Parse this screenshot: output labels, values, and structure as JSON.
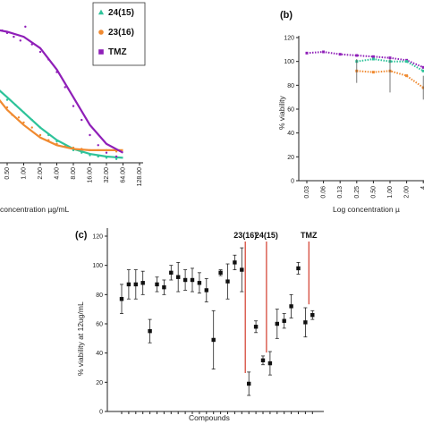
{
  "chart_data": [
    {
      "id": "a",
      "type": "scatter",
      "xlabel": "concentration µg/mL",
      "ylabel": "",
      "x_ticks": [
        "0.50",
        "1.00",
        "2.00",
        "4.00",
        "8.00",
        "16.00",
        "32.00",
        "64.00",
        "128.00"
      ],
      "legend": [
        {
          "label": "24(15)",
          "color": "#2ec39a",
          "marker": "triangle"
        },
        {
          "label": "23(16)",
          "color": "#f08a30",
          "marker": "circle"
        },
        {
          "label": "TMZ",
          "color": "#8f1fb8",
          "marker": "square"
        }
      ],
      "series": [
        {
          "name": "24(15)",
          "color": "#2ec39a",
          "points": [
            [
              -1.2,
              65
            ],
            [
              -1.0,
              58
            ],
            [
              -0.5,
              54
            ],
            [
              0,
              50
            ],
            [
              0.5,
              46
            ],
            [
              1,
              40
            ],
            [
              1.5,
              34
            ],
            [
              2,
              28
            ],
            [
              2.5,
              22
            ],
            [
              3,
              17
            ],
            [
              3.5,
              13
            ],
            [
              4,
              10
            ],
            [
              4.5,
              8
            ],
            [
              5,
              6
            ],
            [
              5.5,
              5
            ],
            [
              6,
              4
            ],
            [
              6.6,
              3
            ]
          ],
          "curve": [
            [
              -1.2,
              66
            ],
            [
              0,
              52
            ],
            [
              1,
              40
            ],
            [
              2,
              28
            ],
            [
              3,
              18
            ],
            [
              4,
              11
            ],
            [
              5,
              7
            ],
            [
              6,
              5
            ],
            [
              7,
              4
            ]
          ]
        },
        {
          "name": "23(16)",
          "color": "#f08a30",
          "points": [
            [
              -1.2,
              95
            ],
            [
              -0.5,
              70
            ],
            [
              0,
              44
            ],
            [
              0.3,
              38
            ],
            [
              0.7,
              36
            ],
            [
              1,
              32
            ],
            [
              1.5,
              28
            ],
            [
              2,
              22
            ],
            [
              2.5,
              18
            ],
            [
              3,
              15
            ],
            [
              3.5,
              13
            ],
            [
              4,
              12
            ],
            [
              4.5,
              11
            ],
            [
              5,
              10
            ],
            [
              5.5,
              10
            ],
            [
              6,
              10
            ],
            [
              6.6,
              9
            ]
          ],
          "curve": [
            [
              -1.2,
              62
            ],
            [
              0,
              42
            ],
            [
              1,
              30
            ],
            [
              2,
              20
            ],
            [
              3,
              14
            ],
            [
              4,
              11
            ],
            [
              5,
              10
            ],
            [
              6,
              10
            ],
            [
              7,
              10
            ]
          ]
        },
        {
          "name": "TMZ",
          "color": "#8f1fb8",
          "points": [
            [
              -0.7,
              104
            ],
            [
              -0.3,
              105
            ],
            [
              0,
              103
            ],
            [
              0.4,
              100
            ],
            [
              0.8,
              97
            ],
            [
              1.1,
              108
            ],
            [
              1.5,
              94
            ],
            [
              2,
              88
            ],
            [
              2.5,
              82
            ],
            [
              3,
              72
            ],
            [
              3.5,
              60
            ],
            [
              4,
              45
            ],
            [
              4.5,
              34
            ],
            [
              5,
              22
            ],
            [
              5.5,
              14
            ],
            [
              6,
              8
            ],
            [
              6.6,
              5
            ]
          ],
          "curve": [
            [
              -0.8,
              106
            ],
            [
              0,
              104
            ],
            [
              1,
              100
            ],
            [
              2,
              91
            ],
            [
              3,
              74
            ],
            [
              4,
              52
            ],
            [
              5,
              30
            ],
            [
              6,
              15
            ],
            [
              7,
              8
            ]
          ]
        }
      ]
    },
    {
      "id": "b",
      "type": "scatter",
      "xlabel": "Log concentration µ",
      "ylabel": "% viability",
      "y_ticks": [
        "0",
        "20",
        "40",
        "60",
        "80",
        "100",
        "120"
      ],
      "ylim": [
        0,
        120
      ],
      "x_ticks": [
        "0.03",
        "0.06",
        "0.13",
        "0.25",
        "0.50",
        "1.00",
        "2.00",
        "4"
      ],
      "series": [
        {
          "name": "purple",
          "color": "#8f1fb8",
          "points": [
            [
              0,
              107
            ],
            [
              1,
              108
            ],
            [
              2,
              106
            ],
            [
              3,
              105
            ],
            [
              4,
              104
            ],
            [
              5,
              103
            ],
            [
              6,
              101
            ],
            [
              7,
              95
            ]
          ]
        },
        {
          "name": "green",
          "color": "#2ec39a",
          "points": [
            [
              3,
              100
            ],
            [
              4,
              102
            ],
            [
              5,
              100
            ],
            [
              6,
              100
            ],
            [
              7,
              92
            ]
          ]
        },
        {
          "name": "orange",
          "color": "#f08a30",
          "points": [
            [
              3,
              92
            ],
            [
              4,
              91
            ],
            [
              5,
              92
            ],
            [
              6,
              88
            ],
            [
              7,
              78
            ]
          ]
        }
      ]
    },
    {
      "id": "c",
      "type": "scatter",
      "xlabel": "Compounds",
      "ylabel": "% viability at 12ug/mL",
      "y_ticks": [
        "0",
        "20",
        "40",
        "60",
        "80",
        "100",
        "120"
      ],
      "ylim": [
        0,
        120
      ],
      "values": [
        77,
        87,
        87,
        88,
        55,
        87,
        85,
        95,
        92,
        90,
        90,
        88,
        83,
        49,
        95,
        89,
        102,
        97,
        19,
        58,
        35,
        33,
        60,
        62,
        72,
        98,
        61,
        66
      ],
      "errors": [
        10,
        10,
        10,
        8,
        8,
        5,
        5,
        5,
        10,
        7,
        8,
        7,
        8,
        20,
        2,
        12,
        5,
        15,
        8,
        4,
        3,
        8,
        10,
        5,
        8,
        4,
        10,
        3
      ],
      "highlight_labels": [
        {
          "index": 18,
          "label": "23(16)"
        },
        {
          "index": 21,
          "label": "24(15)"
        },
        {
          "index": 27,
          "label": "TMZ"
        }
      ]
    }
  ],
  "panel_labels": {
    "b": "(b)",
    "c": "(c)"
  }
}
